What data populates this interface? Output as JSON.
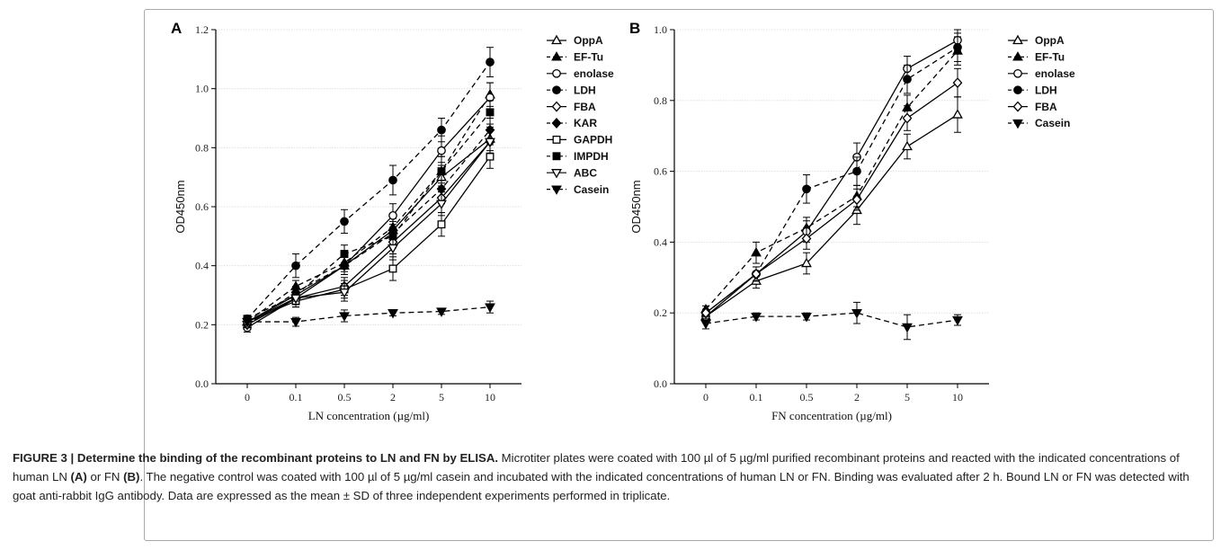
{
  "chart_data": [
    {
      "type": "line",
      "panel_label": "A",
      "categories": [
        "0",
        "0.1",
        "0.5",
        "2",
        "5",
        "10"
      ],
      "xlabel": "LN concentration (µg/ml)",
      "ylabel": "OD450nm",
      "ylim": [
        0,
        1.2
      ],
      "yticks": [
        "0.0",
        "0.2",
        "0.4",
        "0.6",
        "0.8",
        "1.0",
        "1.2"
      ],
      "grid": true,
      "legend_position": "top-right",
      "series": [
        {
          "name": "OppA",
          "marker": "triangle-up-open",
          "dash": false,
          "values": [
            0.21,
            0.3,
            0.4,
            0.52,
            0.7,
            0.83
          ],
          "err": [
            0.01,
            0.02,
            0.03,
            0.04,
            0.05,
            0.04
          ]
        },
        {
          "name": "EF-Tu",
          "marker": "triangle-up",
          "dash": true,
          "values": [
            0.21,
            0.33,
            0.41,
            0.53,
            0.72,
            0.98
          ],
          "err": [
            0.01,
            0.02,
            0.03,
            0.04,
            0.05,
            0.04
          ]
        },
        {
          "name": "enolase",
          "marker": "circle-open",
          "dash": false,
          "values": [
            0.19,
            0.29,
            0.4,
            0.57,
            0.79,
            0.97
          ],
          "err": [
            0.015,
            0.03,
            0.03,
            0.04,
            0.05,
            0.05
          ]
        },
        {
          "name": "LDH",
          "marker": "circle",
          "dash": true,
          "values": [
            0.22,
            0.4,
            0.55,
            0.69,
            0.86,
            1.09
          ],
          "err": [
            0.01,
            0.04,
            0.04,
            0.05,
            0.04,
            0.05
          ]
        },
        {
          "name": "FBA",
          "marker": "diamond-open",
          "dash": false,
          "values": [
            0.21,
            0.29,
            0.33,
            0.48,
            0.63,
            0.82
          ],
          "err": [
            0.01,
            0.02,
            0.03,
            0.04,
            0.05,
            0.04
          ]
        },
        {
          "name": "KAR",
          "marker": "diamond",
          "dash": true,
          "values": [
            0.2,
            0.31,
            0.4,
            0.51,
            0.66,
            0.86
          ],
          "err": [
            0.01,
            0.02,
            0.03,
            0.04,
            0.05,
            0.04
          ]
        },
        {
          "name": "GAPDH",
          "marker": "square-open",
          "dash": false,
          "values": [
            0.21,
            0.28,
            0.32,
            0.39,
            0.54,
            0.77
          ],
          "err": [
            0.01,
            0.02,
            0.03,
            0.04,
            0.04,
            0.04
          ]
        },
        {
          "name": "IMPDH",
          "marker": "square",
          "dash": true,
          "values": [
            0.22,
            0.3,
            0.44,
            0.5,
            0.72,
            0.92
          ],
          "err": [
            0.01,
            0.02,
            0.03,
            0.04,
            0.05,
            0.04
          ]
        },
        {
          "name": "ABC",
          "marker": "triangle-down-open",
          "dash": false,
          "values": [
            0.2,
            0.29,
            0.31,
            0.46,
            0.61,
            0.82
          ],
          "err": [
            0.01,
            0.02,
            0.03,
            0.04,
            0.04,
            0.04
          ]
        },
        {
          "name": "Casein",
          "marker": "triangle-down",
          "dash": true,
          "values": [
            0.21,
            0.21,
            0.23,
            0.24,
            0.245,
            0.26
          ],
          "err": [
            0.01,
            0.015,
            0.02,
            0.01,
            0.01,
            0.02
          ]
        }
      ]
    },
    {
      "type": "line",
      "panel_label": "B",
      "categories": [
        "0",
        "0.1",
        "0.5",
        "2",
        "5",
        "10"
      ],
      "xlabel": "FN concentration (µg/ml)",
      "ylabel": "OD450nm",
      "ylim": [
        0,
        1.0
      ],
      "yticks": [
        "0.0",
        "0.2",
        "0.4",
        "0.6",
        "0.8",
        "1.0"
      ],
      "grid": true,
      "legend_position": "top-right",
      "series": [
        {
          "name": "OppA",
          "marker": "triangle-up-open",
          "dash": false,
          "values": [
            0.19,
            0.29,
            0.34,
            0.49,
            0.67,
            0.76
          ],
          "err": [
            0.015,
            0.02,
            0.03,
            0.04,
            0.035,
            0.05
          ]
        },
        {
          "name": "EF-Tu",
          "marker": "triangle-up",
          "dash": true,
          "values": [
            0.21,
            0.37,
            0.44,
            0.53,
            0.78,
            0.94
          ],
          "err": [
            0.01,
            0.03,
            0.03,
            0.03,
            0.035,
            0.04
          ]
        },
        {
          "name": "enolase",
          "marker": "circle-open",
          "dash": false,
          "values": [
            0.19,
            0.31,
            0.43,
            0.64,
            0.89,
            0.97
          ],
          "err": [
            0.015,
            0.02,
            0.03,
            0.04,
            0.035,
            0.03
          ]
        },
        {
          "name": "LDH",
          "marker": "circle",
          "dash": true,
          "values": [
            0.2,
            0.31,
            0.55,
            0.6,
            0.86,
            0.95
          ],
          "err": [
            0.01,
            0.02,
            0.04,
            0.04,
            0.04,
            0.04
          ]
        },
        {
          "name": "FBA",
          "marker": "diamond-open",
          "dash": false,
          "values": [
            0.2,
            0.31,
            0.41,
            0.52,
            0.75,
            0.85
          ],
          "err": [
            0.01,
            0.02,
            0.03,
            0.03,
            0.035,
            0.04
          ]
        },
        {
          "name": "Casein",
          "marker": "triangle-down",
          "dash": true,
          "values": [
            0.17,
            0.19,
            0.19,
            0.2,
            0.16,
            0.18
          ],
          "err": [
            0.015,
            0.01,
            0.01,
            0.03,
            0.035,
            0.015
          ]
        }
      ]
    }
  ],
  "caption": {
    "lead": "FIGURE 3 | Determine the binding of the recombinant proteins to LN and FN by ELISA.",
    "s1": " Microtiter plates were coated with 100 µl of 5 µg/ml purified recombinant proteins and reacted with the indicated concentrations of human LN ",
    "a": "(A)",
    "s2": " or FN ",
    "b": "(B)",
    "s3": ". The negative control was coated with 100 µl of 5 µg/ml casein and incubated with the indicated concentrations of human LN or FN. Binding was evaluated after 2 h. Bound LN or FN was detected with goat anti-rabbit IgG antibody. Data are expressed as the mean ± SD of three independent experiments performed in triplicate."
  }
}
